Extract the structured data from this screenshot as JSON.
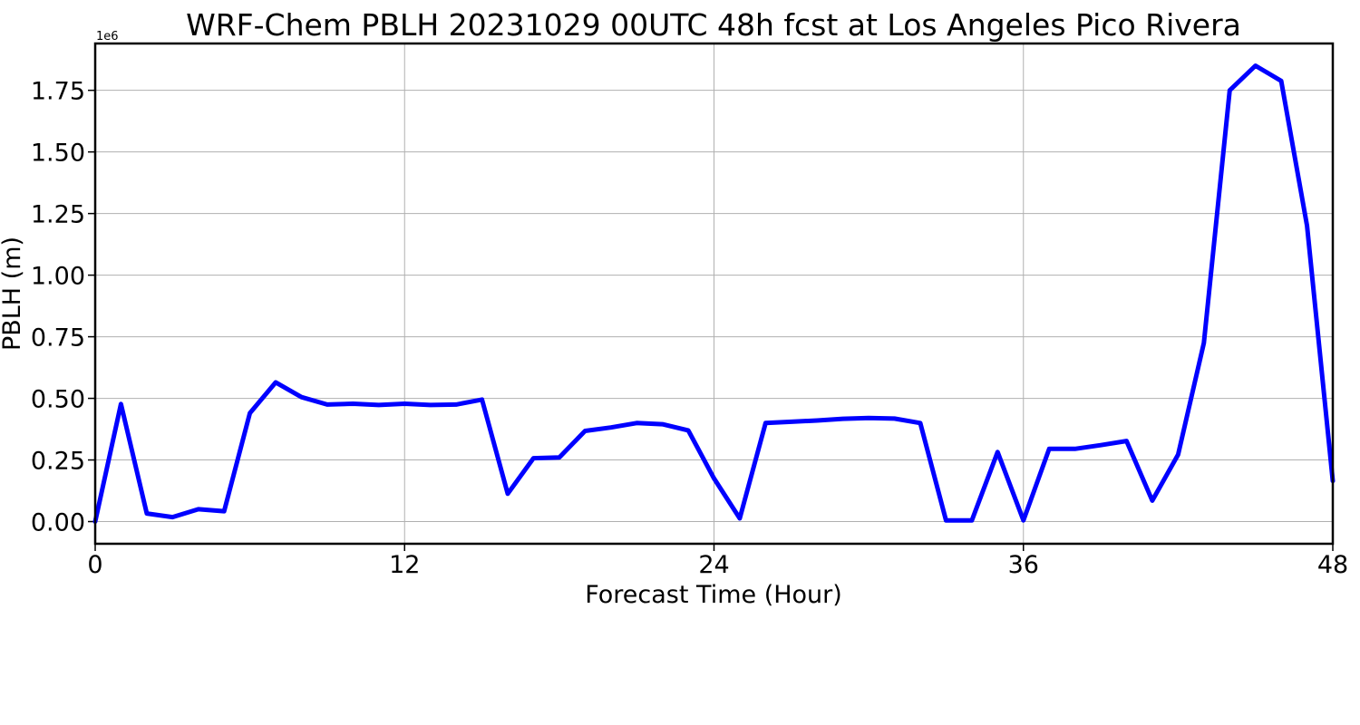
{
  "chart_data": {
    "type": "line",
    "title": "WRF-Chem PBLH  20231029 00UTC 48h fcst at Los Angeles Pico Rivera",
    "xlabel": "Forecast Time (Hour)",
    "ylabel": "PBLH  (m)",
    "y_offset_label": "1e6",
    "xlim": [
      0,
      48
    ],
    "ylim": [
      -0.09,
      1.94
    ],
    "y_scale_factor": 1000000,
    "xticks": [
      0,
      12,
      24,
      36,
      48
    ],
    "xtick_labels": [
      "0",
      "12",
      "24",
      "36",
      "48"
    ],
    "yticks": [
      0,
      0.25,
      0.5,
      0.75,
      1.0,
      1.25,
      1.5,
      1.75
    ],
    "ytick_labels": [
      "0.00",
      "0.25",
      "0.50",
      "0.75",
      "1.00",
      "1.25",
      "1.50",
      "1.75"
    ],
    "grid": true,
    "line_color": "#0000ff",
    "series": [
      {
        "x": [
          0,
          1,
          2,
          3,
          4,
          5,
          6,
          7,
          8,
          9,
          10,
          11,
          12,
          13,
          14,
          15,
          16,
          17,
          18,
          19,
          20,
          21,
          22,
          23,
          24,
          25,
          26,
          27,
          28,
          29,
          30,
          31,
          32,
          33,
          34,
          35,
          36,
          37,
          38,
          39,
          40,
          41,
          42,
          43,
          44,
          45,
          46,
          47,
          48
        ],
        "values": [
          0.0,
          0.477,
          0.033,
          0.018,
          0.05,
          0.042,
          0.44,
          0.565,
          0.505,
          0.475,
          0.478,
          0.473,
          0.478,
          0.473,
          0.475,
          0.495,
          0.113,
          0.257,
          0.26,
          0.368,
          0.382,
          0.4,
          0.395,
          0.37,
          0.175,
          0.013,
          0.4,
          0.405,
          0.41,
          0.417,
          0.42,
          0.418,
          0.4,
          0.005,
          0.005,
          0.282,
          0.005,
          0.295,
          0.295,
          0.31,
          0.327,
          0.085,
          0.272,
          0.725,
          1.75,
          1.85,
          1.788,
          1.2,
          0.165
        ]
      }
    ]
  }
}
